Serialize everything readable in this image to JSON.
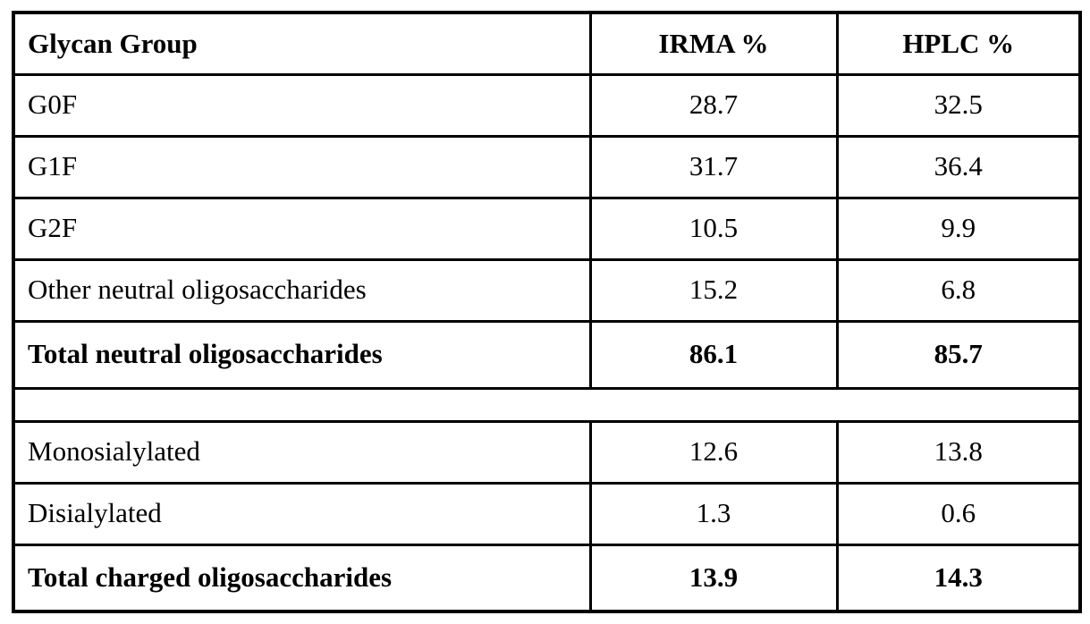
{
  "table": {
    "headers": [
      "Glycan Group",
      "IRMA %",
      "HPLC %"
    ],
    "neutral_rows": [
      {
        "label": "G0F",
        "irma": "28.7",
        "hplc": "32.5"
      },
      {
        "label": "G1F",
        "irma": "31.7",
        "hplc": "36.4"
      },
      {
        "label": "G2F",
        "irma": "10.5",
        "hplc": "9.9"
      },
      {
        "label": "Other neutral oligosaccharides",
        "irma": "15.2",
        "hplc": "6.8"
      },
      {
        "label": "Total neutral oligosaccharides",
        "irma": "86.1",
        "hplc": "85.7"
      }
    ],
    "charged_rows": [
      {
        "label": "Monosialylated",
        "irma": "12.6",
        "hplc": "13.8"
      },
      {
        "label": "Disialylated",
        "irma": "1.3",
        "hplc": "0.6"
      },
      {
        "label": "Total charged oligosaccharides",
        "irma": "13.9",
        "hplc": "14.3"
      }
    ],
    "colors": {
      "border": "#000000",
      "text": "#000000",
      "background": "#ffffff"
    }
  }
}
